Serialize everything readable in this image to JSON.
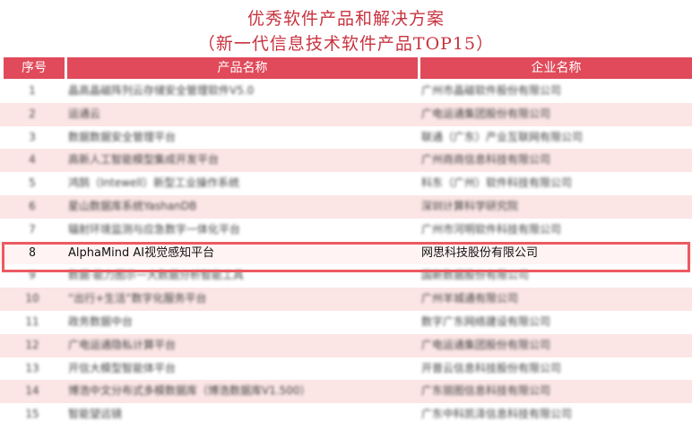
{
  "title": "优秀软件产品和解决方案",
  "subtitle": "（新一代信息技术软件产品TOP15）",
  "header": {
    "no": "序号",
    "product": "产品名称",
    "company": "企业名称"
  },
  "highlight_color": "#ec5a62",
  "header_color": "#e04a5a",
  "rows": [
    {
      "no": "1",
      "product": "晶高晶磁阵列云存储安全管理软件V5.0",
      "company": "广州市晶磁软件股份有限公司",
      "blurred": true
    },
    {
      "no": "2",
      "product": "运通云",
      "company": "广电运通集团股份有限公司",
      "blurred": true
    },
    {
      "no": "3",
      "product": "数据数据安全管理平台",
      "company": "联通（广东）产业互联网有限公司",
      "blurred": true
    },
    {
      "no": "4",
      "product": "高新人工智能模型集成开发平台",
      "company": "广州商商信息科技有限公司",
      "blurred": true
    },
    {
      "no": "5",
      "product": "鸿鹄（Intewell）新型工业操作系统",
      "company": "科东（广州）软件科技有限公司",
      "blurred": true
    },
    {
      "no": "6",
      "product": "星山数据库系统YashanDB",
      "company": "深圳计算科学研究院",
      "blurred": true
    },
    {
      "no": "7",
      "product": "辐射环境监测与应急数字一体化平台",
      "company": "广州市河明软件科技有限公司",
      "blurred": true
    },
    {
      "no": "8",
      "product": "AlphaMind AI视觉感知平台",
      "company": "网思科技股份有限公司",
      "blurred": false
    },
    {
      "no": "9",
      "product": "数据·能力图示一大数据分析智能工具",
      "company": "国新数据股份有限公司",
      "blurred": true
    },
    {
      "no": "10",
      "product": "“出行+生活”数字化服务平台",
      "company": "广州羊城通有限公司",
      "blurred": true
    },
    {
      "no": "11",
      "product": "政务数据中台",
      "company": "数字广东网络建设有限公司",
      "blurred": true
    },
    {
      "no": "12",
      "product": "广电运通隐私计算平台",
      "company": "广电运通集团股份有限公司",
      "blurred": true
    },
    {
      "no": "13",
      "product": "开信大模型智能体平台",
      "company": "开普云信息科技股份有限公司",
      "blurred": true
    },
    {
      "no": "14",
      "product": "博浩中文分布式多模数据库（博浩数据库V1.500）",
      "company": "广东丽图信息科技有限公司",
      "blurred": true
    },
    {
      "no": "15",
      "product": "智能望远镜",
      "company": "广东中科凯泽信息科技有限公司",
      "blurred": true
    }
  ]
}
